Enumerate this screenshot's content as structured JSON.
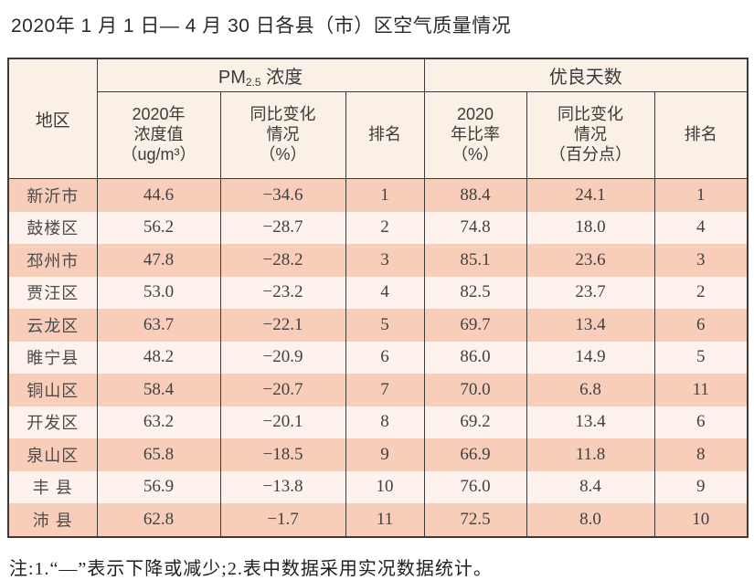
{
  "title": "2020年 1 月 1 日— 4 月 30 日各县（市）区空气质量情况",
  "table": {
    "header": {
      "region": "地区",
      "pm25": {
        "prefix": "PM",
        "sub": "2.5",
        "suffix": " 浓度"
      },
      "good_days": "优良天数",
      "pm_value": "2020年\n浓度值\n（ug/m³）",
      "pm_change": "同比变化\n情况\n（%）",
      "pm_rank": "排名",
      "gd_ratio": "2020\n年比率\n（%）",
      "gd_change": "同比变化\n情况\n（百分点）",
      "gd_rank": "排名"
    },
    "rows": [
      {
        "region": "新沂市",
        "pm_value": "44.6",
        "pm_change": "−34.6",
        "pm_rank": "1",
        "gd_ratio": "88.4",
        "gd_change": "24.1",
        "gd_rank": "1"
      },
      {
        "region": "鼓楼区",
        "pm_value": "56.2",
        "pm_change": "−28.7",
        "pm_rank": "2",
        "gd_ratio": "74.8",
        "gd_change": "18.0",
        "gd_rank": "4"
      },
      {
        "region": "邳州市",
        "pm_value": "47.8",
        "pm_change": "−28.2",
        "pm_rank": "3",
        "gd_ratio": "85.1",
        "gd_change": "23.6",
        "gd_rank": "3"
      },
      {
        "region": "贾汪区",
        "pm_value": "53.0",
        "pm_change": "−23.2",
        "pm_rank": "4",
        "gd_ratio": "82.5",
        "gd_change": "23.7",
        "gd_rank": "2"
      },
      {
        "region": "云龙区",
        "pm_value": "63.7",
        "pm_change": "−22.1",
        "pm_rank": "5",
        "gd_ratio": "69.7",
        "gd_change": "13.4",
        "gd_rank": "6"
      },
      {
        "region": "睢宁县",
        "pm_value": "48.2",
        "pm_change": "−20.9",
        "pm_rank": "6",
        "gd_ratio": "86.0",
        "gd_change": "14.9",
        "gd_rank": "5"
      },
      {
        "region": "铜山区",
        "pm_value": "58.4",
        "pm_change": "−20.7",
        "pm_rank": "7",
        "gd_ratio": "70.0",
        "gd_change": "6.8",
        "gd_rank": "11"
      },
      {
        "region": "开发区",
        "pm_value": "63.2",
        "pm_change": "−20.1",
        "pm_rank": "8",
        "gd_ratio": "69.2",
        "gd_change": "13.4",
        "gd_rank": "6"
      },
      {
        "region": "泉山区",
        "pm_value": "65.8",
        "pm_change": "−18.5",
        "pm_rank": "9",
        "gd_ratio": "66.9",
        "gd_change": "11.8",
        "gd_rank": "8"
      },
      {
        "region": "丰 县",
        "pm_value": "56.9",
        "pm_change": "−13.8",
        "pm_rank": "10",
        "gd_ratio": "76.0",
        "gd_change": "8.4",
        "gd_rank": "9"
      },
      {
        "region": "沛 县",
        "pm_value": "62.8",
        "pm_change": "−1.7",
        "pm_rank": "11",
        "gd_ratio": "72.5",
        "gd_change": "8.0",
        "gd_rank": "10"
      }
    ]
  },
  "note": "注:1.“—”表示下降或减少;2.表中数据采用实况数据统计。",
  "colors": {
    "row_odd": "#f8cebb",
    "row_even": "#fdf2ec",
    "header_bg": "#fbf0e6",
    "border": "#3b3b3b"
  }
}
